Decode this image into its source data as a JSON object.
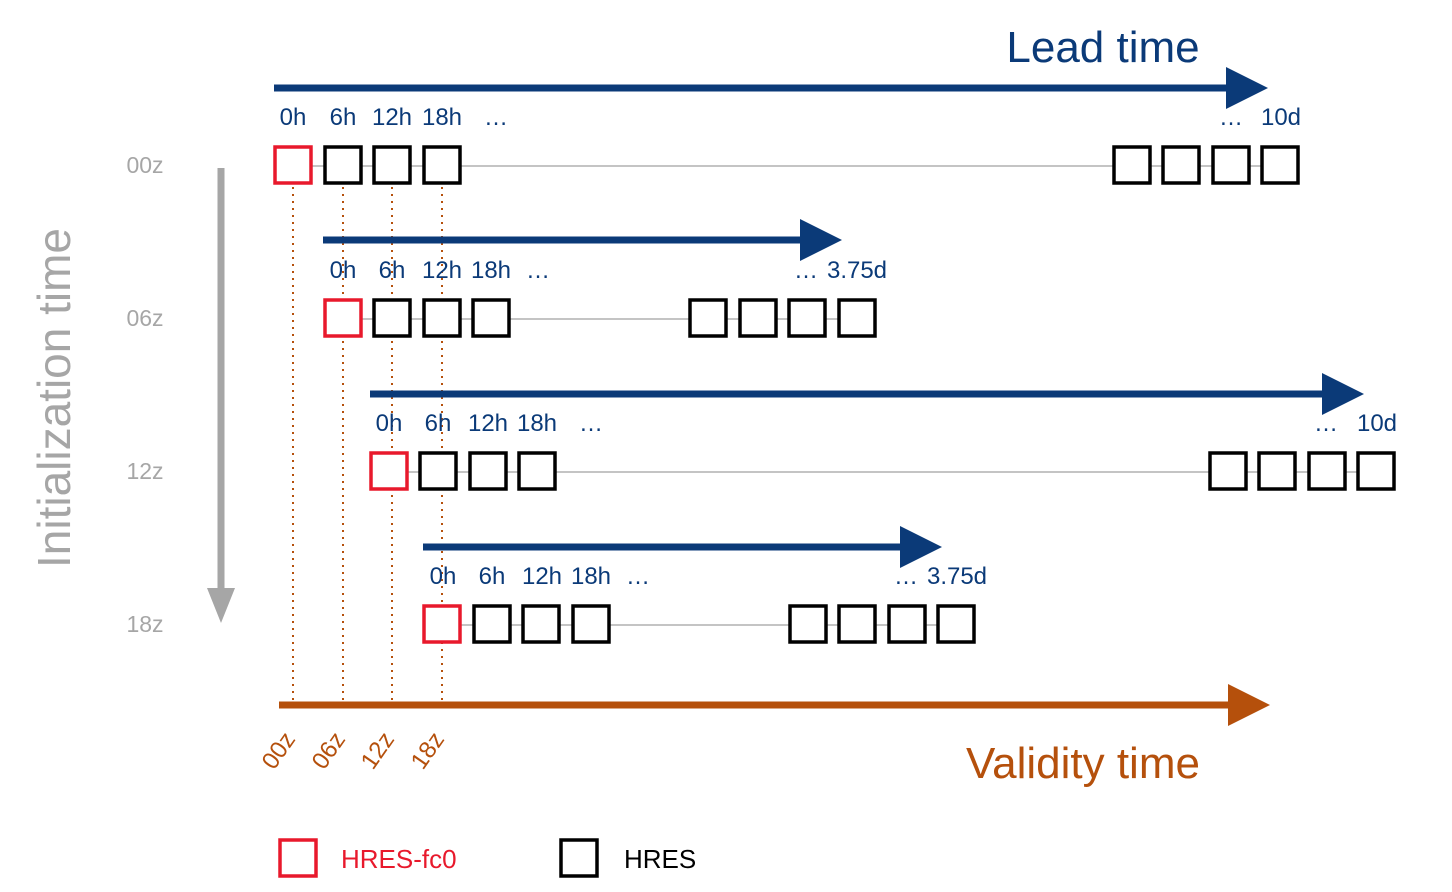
{
  "colors": {
    "lead": "#0b3a78",
    "validity": "#b5500c",
    "init": "#a6a6a6",
    "hres_fc0": "#e8192c",
    "hres": "#000000",
    "guide": "#b5500c",
    "thin_line": "#a0a0a0"
  },
  "titles": {
    "lead": "Lead time",
    "validity": "Validity time",
    "init": "Initialization time"
  },
  "init_rows": [
    {
      "label": "00z",
      "lead_labels": [
        "0h",
        "6h",
        "12h",
        "18h",
        "…"
      ],
      "end_ellipsis": "…",
      "end_label": "10d"
    },
    {
      "label": "06z",
      "lead_labels": [
        "0h",
        "6h",
        "12h",
        "18h",
        "…"
      ],
      "end_ellipsis": "…",
      "end_label": "3.75d"
    },
    {
      "label": "12z",
      "lead_labels": [
        "0h",
        "6h",
        "12h",
        "18h",
        "…"
      ],
      "end_ellipsis": "…",
      "end_label": "10d"
    },
    {
      "label": "18z",
      "lead_labels": [
        "0h",
        "6h",
        "12h",
        "18h",
        "…"
      ],
      "end_ellipsis": "…",
      "end_label": "3.75d"
    }
  ],
  "validity_ticks": [
    "00z",
    "06z",
    "12z",
    "18z"
  ],
  "legend": {
    "hres_fc0": "HRES-fc0",
    "hres": "HRES"
  }
}
